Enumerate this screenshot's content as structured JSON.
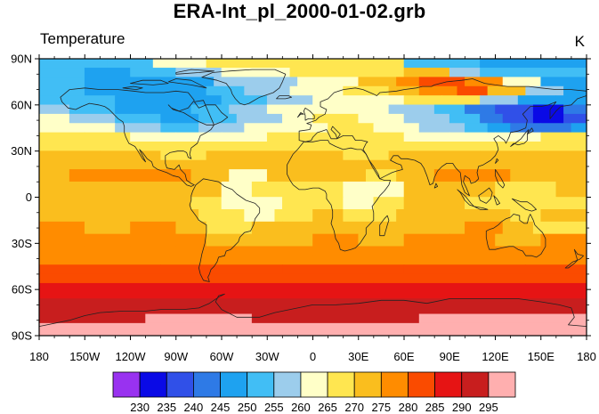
{
  "title": "ERA-Int_pl_2000-01-02.grb",
  "subtitle": "Temperature",
  "units": "K",
  "map": {
    "projection": "cylindrical-equidistant",
    "lon_range": [
      -180,
      180
    ],
    "lat_range": [
      -90,
      90
    ],
    "lon_ticks": [
      "180",
      "150W",
      "120W",
      "90W",
      "60W",
      "30W",
      "0",
      "30E",
      "60E",
      "90E",
      "120E",
      "150E",
      "180"
    ],
    "lat_ticks": [
      "90N",
      "60N",
      "30N",
      "0",
      "30S",
      "60S",
      "90S"
    ],
    "coastlines": true
  },
  "colorbar": {
    "labels": [
      "230",
      "235",
      "240",
      "245",
      "250",
      "255",
      "260",
      "265",
      "270",
      "275",
      "280",
      "285",
      "290",
      "295"
    ],
    "colors": [
      "#9932f0",
      "#0a0ae6",
      "#3050e8",
      "#2e7ae6",
      "#1ea2f0",
      "#41bef5",
      "#9ccdec",
      "#ffffc8",
      "#ffe650",
      "#fabe1e",
      "#ff8c00",
      "#fa4b00",
      "#e61414",
      "#c81e1e",
      "#ffafaf"
    ]
  },
  "chart_data": {
    "type": "heatmap",
    "title": "ERA-Int_pl_2000-01-02.grb",
    "subtitle": "Temperature",
    "units": "K",
    "levels": [
      230,
      235,
      240,
      245,
      250,
      255,
      260,
      265,
      270,
      275,
      280,
      285,
      290,
      295
    ],
    "xlim": [
      -180,
      180
    ],
    "ylim": [
      -90,
      90
    ],
    "rows": [
      {
        "lat_range": [
          84,
          90
        ],
        "lon_breaks": [
          -180,
          -135,
          -105,
          -70,
          -10,
          60,
          110,
          180
        ],
        "values": [
          252,
          254,
          263,
          266,
          265,
          254,
          247
        ]
      },
      {
        "lat_range": [
          78,
          84
        ],
        "lon_breaks": [
          -180,
          -150,
          -120,
          -90,
          -60,
          -15,
          30,
          60,
          90,
          110,
          140,
          180
        ],
        "values": [
          252,
          247,
          254,
          257,
          262,
          266,
          268,
          272,
          258,
          251,
          252
        ]
      },
      {
        "lat_range": [
          72,
          78
        ],
        "lon_breaks": [
          -180,
          -150,
          -120,
          -90,
          -65,
          -40,
          -10,
          30,
          55,
          70,
          100,
          125,
          150,
          180
        ],
        "values": [
          252,
          247,
          245,
          248,
          255,
          258,
          263,
          270,
          276,
          282,
          276,
          260,
          249,
          252
        ]
      },
      {
        "lat_range": [
          66,
          72
        ],
        "lon_breaks": [
          -180,
          -150,
          -120,
          -95,
          -70,
          -45,
          -15,
          20,
          50,
          70,
          95,
          115,
          140,
          165,
          180
        ],
        "values": [
          250,
          247,
          245,
          247,
          252,
          256,
          262,
          266,
          271,
          276,
          280,
          272,
          255,
          248,
          250
        ]
      },
      {
        "lat_range": [
          60,
          66
        ],
        "lon_breaks": [
          -180,
          -160,
          -130,
          -105,
          -85,
          -60,
          -30,
          0,
          35,
          60,
          85,
          110,
          135,
          160,
          180
        ],
        "values": [
          254,
          251,
          248,
          247,
          249,
          253,
          258,
          262,
          264,
          268,
          265,
          255,
          245,
          245,
          249
        ]
      },
      {
        "lat_range": [
          54,
          60
        ],
        "lon_breaks": [
          -180,
          -160,
          -130,
          -100,
          -80,
          -55,
          -30,
          -10,
          20,
          50,
          80,
          100,
          120,
          145,
          165,
          180
        ],
        "values": [
          257,
          253,
          248,
          247,
          250,
          255,
          261,
          264,
          261,
          256,
          251,
          244,
          237,
          234,
          241,
          250
        ]
      },
      {
        "lat_range": [
          48,
          54
        ],
        "lon_breaks": [
          -180,
          -160,
          -130,
          -100,
          -75,
          -50,
          -20,
          0,
          30,
          60,
          90,
          110,
          125,
          145,
          165,
          180
        ],
        "values": [
          261,
          258,
          252,
          248,
          251,
          256,
          262,
          265,
          262,
          257,
          252,
          244,
          236,
          232,
          239,
          252
        ]
      },
      {
        "lat_range": [
          42,
          48
        ],
        "lon_breaks": [
          -180,
          -160,
          -130,
          -100,
          -75,
          -45,
          -15,
          10,
          40,
          70,
          100,
          115,
          130,
          150,
          170,
          180
        ],
        "values": [
          263,
          261,
          257,
          254,
          255,
          260,
          264,
          266,
          263,
          258,
          252,
          246,
          240,
          243,
          249,
          258
        ]
      },
      {
        "lat_range": [
          36,
          42
        ],
        "lon_breaks": [
          -180,
          -150,
          -120,
          -90,
          -60,
          -30,
          0,
          30,
          60,
          90,
          120,
          150,
          180
        ],
        "values": [
          267,
          265,
          263,
          262,
          264,
          266,
          268,
          266,
          263,
          262,
          262,
          265,
          267
        ]
      },
      {
        "lat_range": [
          30,
          36
        ],
        "lon_breaks": [
          -180,
          -150,
          -120,
          -90,
          -60,
          -30,
          0,
          30,
          60,
          90,
          120,
          150,
          180
        ],
        "values": [
          269,
          268,
          267,
          266,
          268,
          268,
          269,
          268,
          266,
          266,
          266,
          268,
          269
        ]
      },
      {
        "lat_range": [
          24,
          30
        ],
        "lon_breaks": [
          -180,
          -140,
          -100,
          -70,
          -40,
          -10,
          20,
          50,
          80,
          110,
          140,
          180
        ],
        "values": [
          272,
          271,
          269,
          270,
          272,
          271,
          269,
          270,
          271,
          270,
          271,
          272
        ]
      },
      {
        "lat_range": [
          18,
          24
        ],
        "lon_breaks": [
          -180,
          -150,
          -120,
          -90,
          -60,
          -30,
          0,
          30,
          60,
          90,
          120,
          150,
          180
        ],
        "values": [
          273,
          273,
          272,
          271,
          272,
          273,
          271,
          270,
          272,
          272,
          272,
          273,
          273
        ]
      },
      {
        "lat_range": [
          10,
          18
        ],
        "lon_breaks": [
          -180,
          -160,
          -130,
          -110,
          -80,
          -55,
          -30,
          -10,
          10,
          35,
          55,
          80,
          105,
          130,
          150,
          180
        ],
        "values": [
          274,
          276,
          277,
          275,
          272,
          264,
          272,
          274,
          271,
          266,
          272,
          275,
          276,
          273,
          272,
          274
        ]
      },
      {
        "lat_range": [
          0,
          10
        ],
        "lon_breaks": [
          -180,
          -150,
          -120,
          -100,
          -80,
          -60,
          -40,
          -20,
          0,
          20,
          40,
          60,
          80,
          100,
          120,
          140,
          160,
          180
        ],
        "values": [
          272,
          271,
          272,
          272,
          271,
          262,
          265,
          267,
          268,
          263,
          263,
          270,
          271,
          270,
          268,
          266,
          270,
          272
        ]
      },
      {
        "lat_range": [
          -8,
          0
        ],
        "lon_breaks": [
          -180,
          -150,
          -120,
          -100,
          -80,
          -60,
          -40,
          -20,
          0,
          20,
          40,
          60,
          80,
          100,
          120,
          140,
          160,
          180
        ],
        "values": [
          272,
          271,
          271,
          272,
          266,
          264,
          262,
          265,
          268,
          264,
          266,
          270,
          271,
          269,
          266,
          265,
          268,
          272
        ]
      },
      {
        "lat_range": [
          -16,
          -8
        ],
        "lon_breaks": [
          -180,
          -150,
          -120,
          -95,
          -75,
          -60,
          -45,
          -25,
          0,
          20,
          35,
          55,
          80,
          110,
          130,
          150,
          180
        ],
        "values": [
          273,
          272,
          273,
          272,
          268,
          266,
          264,
          268,
          270,
          266,
          268,
          271,
          273,
          272,
          268,
          271,
          273
        ]
      },
      {
        "lat_range": [
          -24,
          -16
        ],
        "lon_breaks": [
          -180,
          -150,
          -120,
          -90,
          -70,
          -55,
          -40,
          -20,
          0,
          20,
          40,
          70,
          100,
          125,
          145,
          180
        ],
        "values": [
          275,
          274,
          275,
          274,
          269,
          268,
          270,
          272,
          273,
          270,
          271,
          274,
          275,
          271,
          269,
          274
        ]
      },
      {
        "lat_range": [
          -32,
          -24
        ],
        "lon_breaks": [
          -180,
          -150,
          -120,
          -90,
          -70,
          -50,
          -30,
          0,
          30,
          60,
          90,
          120,
          150,
          180
        ],
        "values": [
          276,
          276,
          275,
          275,
          272,
          273,
          274,
          275,
          274,
          276,
          276,
          274,
          276,
          276
        ]
      },
      {
        "lat_range": [
          -38,
          -32
        ],
        "lon_breaks": [
          -180,
          -120,
          -60,
          0,
          60,
          120,
          180
        ],
        "values": [
          277,
          277,
          276,
          277,
          277,
          277,
          277
        ]
      },
      {
        "lat_range": [
          -44,
          -38
        ],
        "lon_breaks": [
          -180,
          -90,
          0,
          90,
          180
        ],
        "values": [
          279,
          278,
          279,
          279,
          279
        ]
      },
      {
        "lat_range": [
          -50,
          -44
        ],
        "lon_breaks": [
          -180,
          -100,
          -20,
          60,
          140,
          180
        ],
        "values": [
          281,
          281,
          282,
          281,
          281,
          281
        ]
      },
      {
        "lat_range": [
          -56,
          -50
        ],
        "lon_breaks": [
          -180,
          180
        ],
        "values": [
          284
        ]
      },
      {
        "lat_range": [
          -62,
          -56
        ],
        "lon_breaks": [
          -180,
          -60,
          40,
          180
        ],
        "values": [
          287,
          286,
          287,
          287
        ]
      },
      {
        "lat_range": [
          -66,
          -62
        ],
        "lon_breaks": [
          -180,
          180
        ],
        "values": [
          289
        ]
      },
      {
        "lat_range": [
          -70,
          -66
        ],
        "lon_breaks": [
          -180,
          180
        ],
        "values": [
          291
        ]
      },
      {
        "lat_range": [
          -76,
          -70
        ],
        "lon_breaks": [
          -180,
          -60,
          80,
          180
        ],
        "values": [
          293,
          292,
          294,
          293
        ]
      },
      {
        "lat_range": [
          -82,
          -76
        ],
        "lon_breaks": [
          -180,
          -110,
          -40,
          70,
          140,
          180
        ],
        "values": [
          294,
          296,
          294,
          297,
          296,
          294
        ]
      },
      {
        "lat_range": [
          -90,
          -82
        ],
        "lon_breaks": [
          -180,
          180
        ],
        "values": [
          297
        ]
      }
    ]
  }
}
